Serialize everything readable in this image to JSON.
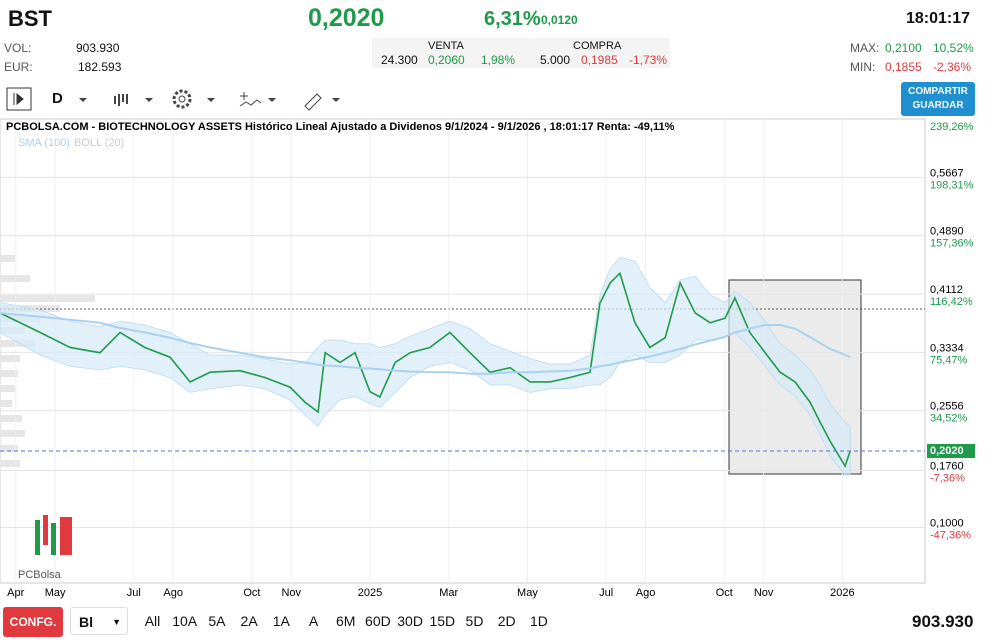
{
  "header": {
    "symbol": "BST",
    "price": "0,2020",
    "change_pct": "6,31%",
    "change": "0,0120",
    "time": "18:01:17",
    "vol_label": "VOL:",
    "vol": "903.930",
    "eur_label": "EUR:",
    "eur": "182.593",
    "venta_label": "VENTA",
    "venta_qty": "24.300",
    "venta_price": "0,2060",
    "venta_pct": "1,98%",
    "compra_label": "COMPRA",
    "compra_qty": "5.000",
    "compra_price": "0,1985",
    "compra_pct": "-1,73%",
    "max_label": "MAX:",
    "max": "0,2100",
    "max_pct": "10,52%",
    "min_label": "MIN:",
    "min": "0,1855",
    "min_pct": "-2,36%"
  },
  "toolbar": {
    "interval": "D",
    "share_top": "COMPARTIR",
    "share_bottom": "GUARDAR"
  },
  "chart_data": {
    "type": "line",
    "title": "PCBOLSA.COM - BIOTECHNOLOGY ASSETS Histórico Lineal Ajustado a Dividenos 9/1/2024 - 9/1/2026 , 18:01:17 Renta: -49,11%",
    "logo": "PCBolsa",
    "x": [
      2.6,
      3.62,
      4.38,
      5.14,
      5.65,
      6.28,
      6.92,
      7.43,
      7.94,
      8.7,
      9.33,
      9.97,
      10.35,
      10.68,
      10.86,
      11.24,
      11.62,
      12.0,
      12.25,
      12.64,
      13.02,
      13.52,
      14.03,
      14.54,
      15.05,
      15.56,
      16.07,
      16.57,
      17.08,
      17.59,
      17.84,
      18.1,
      18.35,
      18.73,
      19.11,
      19.5,
      19.88,
      20.26,
      20.64,
      21.02,
      21.27,
      21.65,
      22.04,
      22.42,
      22.8,
      23.18,
      23.43,
      23.69,
      24.07,
      24.2
    ],
    "series": [
      {
        "color": "#1f9a4a",
        "values": [
          0.386,
          0.36,
          0.34,
          0.333,
          0.36,
          0.34,
          0.327,
          0.294,
          0.307,
          0.309,
          0.3,
          0.287,
          0.267,
          0.254,
          0.333,
          0.32,
          0.333,
          0.281,
          0.274,
          0.32,
          0.333,
          0.34,
          0.36,
          0.333,
          0.307,
          0.313,
          0.294,
          0.294,
          0.3,
          0.307,
          0.399,
          0.426,
          0.439,
          0.373,
          0.34,
          0.353,
          0.426,
          0.386,
          0.373,
          0.379,
          0.406,
          0.36,
          0.333,
          0.307,
          0.294,
          0.267,
          0.241,
          0.215,
          0.182,
          0.202
        ]
      },
      {
        "name": "SMA (100)",
        "color": "#a9d2f0",
        "values": [
          0.386,
          0.381,
          0.377,
          0.373,
          0.366,
          0.36,
          0.353,
          0.346,
          0.34,
          0.333,
          0.327,
          0.323,
          0.32,
          0.317,
          0.316,
          0.315,
          0.313,
          0.312,
          0.311,
          0.309,
          0.308,
          0.307,
          0.307,
          0.305,
          0.305,
          0.307,
          0.307,
          0.308,
          0.309,
          0.312,
          0.315,
          0.317,
          0.32,
          0.324,
          0.328,
          0.333,
          0.338,
          0.344,
          0.349,
          0.354,
          0.36,
          0.365,
          0.37,
          0.37,
          0.365,
          0.354,
          0.346,
          0.338,
          0.33,
          0.327
        ]
      }
    ],
    "band": {
      "name": "BOLL (20)",
      "color": "#d6eaf8",
      "upper": [
        0.4,
        0.39,
        0.375,
        0.368,
        0.375,
        0.37,
        0.36,
        0.345,
        0.33,
        0.33,
        0.325,
        0.318,
        0.32,
        0.34,
        0.35,
        0.35,
        0.345,
        0.345,
        0.34,
        0.345,
        0.355,
        0.365,
        0.375,
        0.365,
        0.345,
        0.335,
        0.325,
        0.318,
        0.318,
        0.33,
        0.41,
        0.445,
        0.46,
        0.455,
        0.42,
        0.4,
        0.43,
        0.435,
        0.41,
        0.4,
        0.415,
        0.4,
        0.375,
        0.345,
        0.33,
        0.31,
        0.29,
        0.265,
        0.24,
        0.235
      ],
      "lower": [
        0.36,
        0.33,
        0.315,
        0.31,
        0.315,
        0.31,
        0.3,
        0.28,
        0.285,
        0.29,
        0.285,
        0.27,
        0.25,
        0.235,
        0.25,
        0.27,
        0.275,
        0.265,
        0.26,
        0.28,
        0.3,
        0.315,
        0.32,
        0.31,
        0.29,
        0.29,
        0.28,
        0.285,
        0.285,
        0.29,
        0.29,
        0.3,
        0.32,
        0.33,
        0.32,
        0.32,
        0.33,
        0.35,
        0.35,
        0.355,
        0.36,
        0.34,
        0.315,
        0.29,
        0.275,
        0.25,
        0.225,
        0.195,
        0.17,
        0.17
      ]
    },
    "last_price": {
      "value": 0.202,
      "label": "0,2020"
    },
    "xlim": [
      2.6,
      26.1
    ],
    "xticks": [
      {
        "value": 3,
        "label": "Apr"
      },
      {
        "value": 4,
        "label": "May"
      },
      {
        "value": 6,
        "label": "Jul"
      },
      {
        "value": 7,
        "label": "Ago"
      },
      {
        "value": 9,
        "label": "Oct"
      },
      {
        "value": 10,
        "label": "Nov"
      },
      {
        "value": 12,
        "label": "2025"
      },
      {
        "value": 14,
        "label": "Mar"
      },
      {
        "value": 16,
        "label": "May"
      },
      {
        "value": 18,
        "label": "Jul"
      },
      {
        "value": 19,
        "label": "Ago"
      },
      {
        "value": 21,
        "label": "Oct"
      },
      {
        "value": 22,
        "label": "Nov"
      },
      {
        "value": 24,
        "label": "2026"
      }
    ],
    "ylim": [
      0.026,
      0.6446
    ],
    "yticks": [
      {
        "value": 0.5667,
        "label": "0,5667"
      },
      {
        "value": 0.489,
        "label": "0,4890"
      },
      {
        "value": 0.4112,
        "label": "0,4112"
      },
      {
        "value": 0.3334,
        "label": "0,3334"
      },
      {
        "value": 0.2556,
        "label": "0,2556"
      },
      {
        "value": 0.176,
        "label": "0,1760"
      },
      {
        "value": 0.1,
        "label": "0,1000"
      }
    ],
    "y2lim": [
      -86.3,
      239.26
    ],
    "y2ticks": [
      {
        "value": 239.26,
        "label": "239,26%"
      },
      {
        "value": 198.31,
        "label": "198,31%"
      },
      {
        "value": 157.36,
        "label": "157,36%"
      },
      {
        "value": 116.42,
        "label": "116,42%"
      },
      {
        "value": 75.47,
        "label": "75,47%"
      },
      {
        "value": 34.52,
        "label": "34,52%"
      },
      {
        "value": -7.36,
        "label": "-7,36%"
      },
      {
        "value": -47.36,
        "label": "-47,36%"
      }
    ],
    "grid": true
  },
  "footer": {
    "config": "CONFG.",
    "scale": "Bl",
    "ranges": [
      "All",
      "10A",
      "5A",
      "2A",
      "1A",
      "A",
      "6M",
      "60D",
      "30D",
      "15D",
      "5D",
      "2D",
      "1D"
    ],
    "volume": "903.930"
  }
}
